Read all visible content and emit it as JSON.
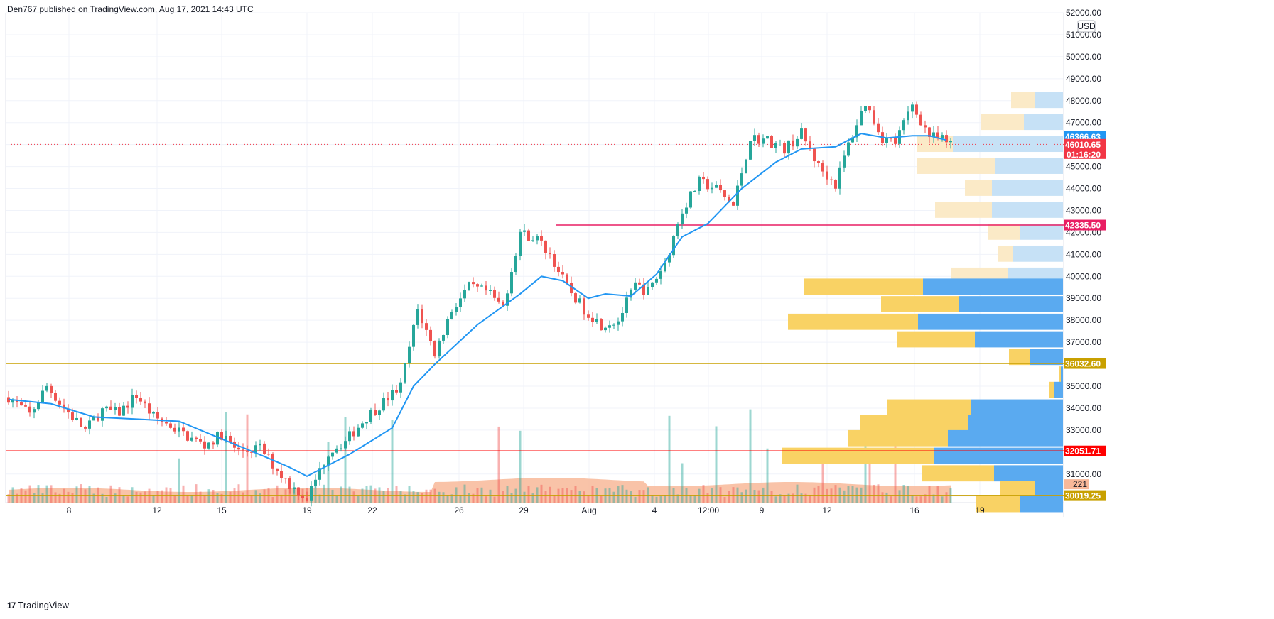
{
  "header": {
    "published": "Den767 published on TradingView.com, Aug 17, 2021 14:43 UTC"
  },
  "footer": {
    "brand": "TradingView",
    "logo": "17"
  },
  "colors": {
    "up": "#26a69a",
    "down": "#ef5350",
    "ma": "#2196f3",
    "vp_up": "#5aaaf0",
    "vp_down": "#f9d264",
    "vp_up_light": "#c6e1f6",
    "vp_down_light": "#fbeac7",
    "vol_ma": "#f8b899",
    "level_gold": "#c8a000",
    "level_red": "#ff0000",
    "level_pink": "#e91e63",
    "price_red": "#f23645",
    "price_blue": "#2196f3",
    "grid": "#f0f3fa"
  },
  "chart_data": {
    "type": "candlestick",
    "symbol_currency": "USD",
    "ylim": [
      29700,
      52000
    ],
    "y_ticks": [
      "52000.00",
      "51000.00",
      "50000.00",
      "49000.00",
      "48000.00",
      "47000.00",
      "46000.00",
      "45000.00",
      "44000.00",
      "43000.00",
      "42000.00",
      "41000.00",
      "40000.00",
      "39000.00",
      "38000.00",
      "37000.00",
      "35000.00",
      "34000.00",
      "33000.00",
      "31000.00",
      "30000.00"
    ],
    "x_ticks": [
      "8",
      "12",
      "15",
      "19",
      "22",
      "26",
      "29",
      "Aug",
      "4",
      "12:00",
      "9",
      "12",
      "16",
      "19"
    ],
    "price_path": [
      [
        0,
        34500
      ],
      [
        5,
        33700
      ],
      [
        9,
        35000
      ],
      [
        13,
        34000
      ],
      [
        18,
        33000
      ],
      [
        22,
        33900
      ],
      [
        26,
        33800
      ],
      [
        30,
        34600
      ],
      [
        34,
        33600
      ],
      [
        38,
        33200
      ],
      [
        42,
        32700
      ],
      [
        46,
        32300
      ],
      [
        50,
        32800
      ],
      [
        54,
        32000
      ],
      [
        59,
        32200
      ],
      [
        63,
        31200
      ],
      [
        66,
        30500
      ],
      [
        70,
        29900
      ],
      [
        75,
        32000
      ],
      [
        79,
        32500
      ],
      [
        84,
        33600
      ],
      [
        88,
        34300
      ],
      [
        92,
        35000
      ],
      [
        96,
        38500
      ],
      [
        100,
        36500
      ],
      [
        104,
        38500
      ],
      [
        108,
        39500
      ],
      [
        112,
        39300
      ],
      [
        116,
        38600
      ],
      [
        120,
        42000
      ],
      [
        124,
        41700
      ],
      [
        127,
        41000
      ],
      [
        131,
        39500
      ],
      [
        135,
        38500
      ],
      [
        139,
        37800
      ],
      [
        143,
        38000
      ],
      [
        147,
        39600
      ],
      [
        150,
        39300
      ],
      [
        154,
        40600
      ],
      [
        158,
        43000
      ],
      [
        162,
        44300
      ],
      [
        166,
        44000
      ],
      [
        170,
        43200
      ],
      [
        174,
        46300
      ],
      [
        178,
        46200
      ],
      [
        182,
        45800
      ],
      [
        186,
        46500
      ],
      [
        190,
        45000
      ],
      [
        194,
        44200
      ],
      [
        197,
        46000
      ],
      [
        201,
        47900
      ],
      [
        205,
        46300
      ],
      [
        208,
        46100
      ],
      [
        212,
        47800
      ],
      [
        216,
        46400
      ],
      [
        219,
        46200
      ],
      [
        221,
        46010
      ]
    ],
    "moving_average": [
      [
        0,
        34400
      ],
      [
        10,
        34200
      ],
      [
        20,
        33600
      ],
      [
        30,
        33500
      ],
      [
        40,
        33400
      ],
      [
        50,
        32600
      ],
      [
        60,
        31800
      ],
      [
        66,
        31300
      ],
      [
        70,
        30900
      ],
      [
        80,
        31900
      ],
      [
        90,
        33100
      ],
      [
        95,
        35000
      ],
      [
        100,
        36000
      ],
      [
        110,
        37800
      ],
      [
        120,
        39200
      ],
      [
        125,
        40000
      ],
      [
        130,
        39800
      ],
      [
        136,
        39000
      ],
      [
        140,
        39200
      ],
      [
        146,
        39100
      ],
      [
        152,
        40100
      ],
      [
        158,
        41800
      ],
      [
        164,
        42400
      ],
      [
        172,
        44000
      ],
      [
        180,
        45200
      ],
      [
        186,
        45800
      ],
      [
        194,
        45900
      ],
      [
        200,
        46500
      ],
      [
        206,
        46300
      ],
      [
        212,
        46400
      ],
      [
        216,
        46400
      ],
      [
        220,
        46200
      ]
    ],
    "levels": [
      {
        "price": 42335.5,
        "label": "42335.50",
        "color": "pink",
        "start": 116
      },
      {
        "price": 36032.6,
        "label": "36032.60",
        "color": "gold",
        "start": 0
      },
      {
        "price": 32051.71,
        "label": "32051.71",
        "color": "red",
        "start": 0
      },
      {
        "price": 30019.25,
        "label": "30019.25",
        "color": "gold",
        "start": 0
      }
    ],
    "last_price": {
      "value": 46010.65,
      "label": "46010.65",
      "countdown": "01:16:20"
    },
    "ma_tag": {
      "value": 46366.63,
      "label": "46366.63"
    },
    "volume_tag": {
      "label": "221"
    },
    "volume_profile": [
      {
        "price": 48000,
        "up": 40,
        "down": 33,
        "light": true
      },
      {
        "price": 47000,
        "up": 55,
        "down": 60,
        "light": true
      },
      {
        "price": 46000,
        "up": 155,
        "down": 50,
        "light": true
      },
      {
        "price": 45000,
        "up": 95,
        "down": 110,
        "light": true
      },
      {
        "price": 44000,
        "up": 100,
        "down": 38,
        "light": true
      },
      {
        "price": 43000,
        "up": 100,
        "down": 80,
        "light": true
      },
      {
        "price": 42000,
        "up": 60,
        "down": 45,
        "light": true
      },
      {
        "price": 41000,
        "up": 70,
        "down": 22,
        "light": true
      },
      {
        "price": 40000,
        "up": 78,
        "down": 80,
        "light": true
      },
      {
        "price": 39500,
        "up": 197,
        "down": 168,
        "light": false
      },
      {
        "price": 38700,
        "up": 146,
        "down": 110,
        "light": false
      },
      {
        "price": 37900,
        "up": 204,
        "down": 183,
        "light": false
      },
      {
        "price": 37100,
        "up": 124,
        "down": 110,
        "light": false
      },
      {
        "price": 36300,
        "up": 46,
        "down": 30,
        "light": false
      },
      {
        "price": 35500,
        "up": 3,
        "down": 3,
        "light": false
      },
      {
        "price": 34800,
        "up": 12,
        "down": 8,
        "light": false
      },
      {
        "price": 34000,
        "up": 130,
        "down": 118,
        "light": false
      },
      {
        "price": 33300,
        "up": 134,
        "down": 152,
        "light": false
      },
      {
        "price": 32600,
        "up": 162,
        "down": 140,
        "light": false
      },
      {
        "price": 31800,
        "up": 182,
        "down": 213,
        "light": false
      },
      {
        "price": 31000,
        "up": 97,
        "down": 102,
        "light": false
      },
      {
        "price": 30300,
        "up": 40,
        "down": 48,
        "light": false
      },
      {
        "price": 29600,
        "up": 60,
        "down": 62,
        "light": false
      }
    ]
  }
}
